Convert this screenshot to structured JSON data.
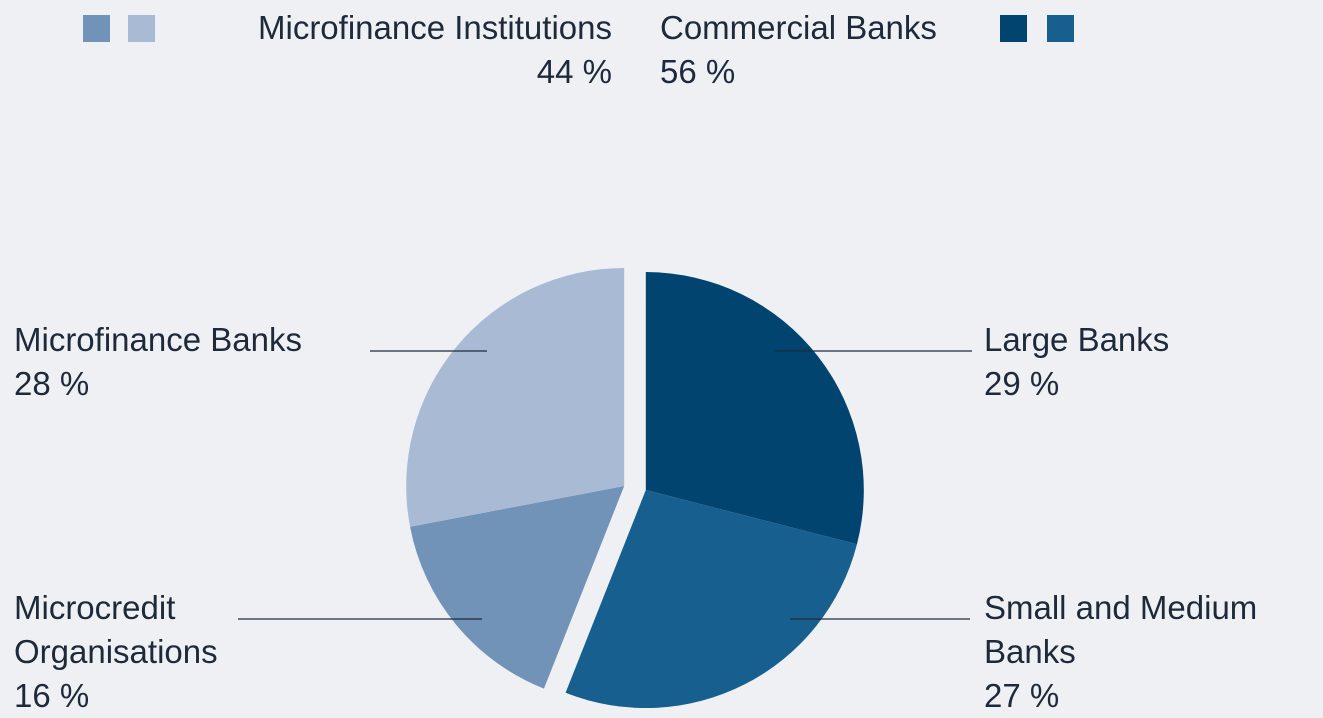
{
  "chart_data": {
    "type": "pie",
    "categories": [
      "Large Banks",
      "Small and Medium Banks",
      "Microcredit Organisations",
      "Microfinance Banks"
    ],
    "values": [
      29,
      27,
      16,
      28
    ],
    "value_labels": [
      "29 %",
      "27 %",
      "16 %",
      "28 %"
    ],
    "colors": [
      "#00446f",
      "#175f8f",
      "#7093b7",
      "#a9bbd4"
    ],
    "groups": [
      {
        "name": "Microfinance Institutions",
        "value": 44,
        "value_label": "44 %",
        "colors": [
          "#7093b7",
          "#a9bbd4"
        ]
      },
      {
        "name": "Commercial Banks",
        "value": 56,
        "value_label": "56 %",
        "colors": [
          "#00446f",
          "#175f8f"
        ]
      }
    ]
  }
}
